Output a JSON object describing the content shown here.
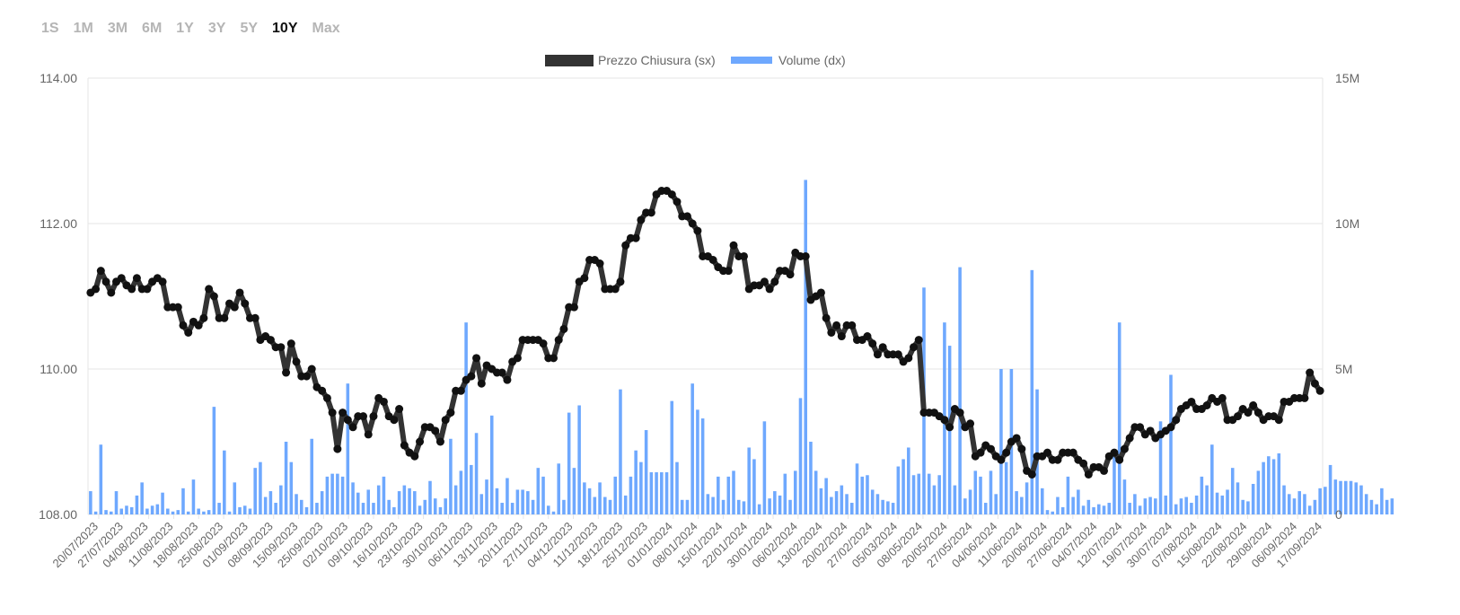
{
  "periods": [
    {
      "label": "1S",
      "active": false
    },
    {
      "label": "1M",
      "active": false
    },
    {
      "label": "3M",
      "active": false
    },
    {
      "label": "6M",
      "active": false
    },
    {
      "label": "1Y",
      "active": false
    },
    {
      "label": "3Y",
      "active": false
    },
    {
      "label": "5Y",
      "active": false
    },
    {
      "label": "10Y",
      "active": true
    },
    {
      "label": "Max",
      "active": false
    }
  ],
  "colors": {
    "price": "#333333",
    "volume": "#6ea8fe",
    "grid": "#e6e6e6",
    "tick_text": "#666666",
    "period_active": "#111111",
    "period_inactive": "#b5b5b5"
  },
  "chart_data": {
    "type": "line",
    "title": "",
    "legend": {
      "position": "top-center",
      "entries": [
        {
          "label": "Prezzo Chiusura (sx)",
          "color": "#333333"
        },
        {
          "label": "Volume (dx)",
          "color": "#6ea8fe"
        }
      ]
    },
    "x_tick_labels": [
      "20/07/2023",
      "27/07/2023",
      "04/08/2023",
      "11/08/2023",
      "18/08/2023",
      "25/08/2023",
      "01/09/2023",
      "08/09/2023",
      "15/09/2023",
      "25/09/2023",
      "02/10/2023",
      "09/10/2023",
      "16/10/2023",
      "23/10/2023",
      "30/10/2023",
      "06/11/2023",
      "13/11/2023",
      "20/11/2023",
      "27/11/2023",
      "04/12/2023",
      "11/12/2023",
      "18/12/2023",
      "25/12/2023",
      "01/01/2024",
      "08/01/2024",
      "15/01/2024",
      "22/01/2024",
      "30/01/2024",
      "06/02/2024",
      "13/02/2024",
      "20/02/2024",
      "27/02/2024",
      "05/03/2024",
      "08/05/2024",
      "20/05/2024",
      "27/05/2024",
      "04/06/2024",
      "11/06/2024",
      "20/06/2024",
      "27/06/2024",
      "04/07/2024",
      "12/07/2024",
      "19/07/2024",
      "30/07/2024",
      "07/08/2024",
      "15/08/2024",
      "22/08/2024",
      "29/08/2024",
      "06/09/2024",
      "17/09/2024"
    ],
    "y_left": {
      "label": "",
      "range": [
        108,
        114
      ],
      "ticks": [
        "108.00",
        "110.00",
        "112.00",
        "114.00"
      ]
    },
    "y_right": {
      "label": "",
      "range": [
        0,
        15000000
      ],
      "ticks": [
        "0",
        "5M",
        "10M",
        "15M"
      ]
    },
    "grid": true,
    "series": [
      {
        "name": "Prezzo Chiusura (sx)",
        "type": "line",
        "axis": "left",
        "values": [
          111.05,
          111.1,
          111.35,
          111.2,
          111.05,
          111.2,
          111.25,
          111.15,
          111.1,
          111.25,
          111.1,
          111.1,
          111.2,
          111.25,
          111.2,
          110.85,
          110.85,
          110.85,
          110.6,
          110.5,
          110.65,
          110.6,
          110.7,
          111.1,
          111.0,
          110.7,
          110.7,
          110.9,
          110.85,
          111.05,
          110.9,
          110.7,
          110.7,
          110.4,
          110.45,
          110.4,
          110.3,
          110.3,
          109.95,
          110.35,
          110.1,
          109.9,
          109.9,
          110.0,
          109.75,
          109.7,
          109.6,
          109.4,
          108.9,
          109.4,
          109.3,
          109.2,
          109.35,
          109.35,
          109.1,
          109.35,
          109.6,
          109.55,
          109.35,
          109.3,
          109.45,
          108.95,
          108.85,
          108.8,
          109.0,
          109.2,
          109.2,
          109.15,
          109.0,
          109.3,
          109.4,
          109.7,
          109.7,
          109.85,
          109.9,
          110.15,
          109.8,
          110.05,
          110.0,
          109.95,
          109.95,
          109.85,
          110.1,
          110.15,
          110.4,
          110.4,
          110.4,
          110.4,
          110.35,
          110.15,
          110.15,
          110.4,
          110.55,
          110.85,
          110.85,
          111.2,
          111.25,
          111.5,
          111.5,
          111.45,
          111.1,
          111.1,
          111.1,
          111.2,
          111.7,
          111.8,
          111.8,
          112.05,
          112.15,
          112.15,
          112.4,
          112.45,
          112.45,
          112.4,
          112.3,
          112.1,
          112.1,
          112.0,
          111.9,
          111.55,
          111.55,
          111.5,
          111.4,
          111.35,
          111.35,
          111.7,
          111.55,
          111.55,
          111.1,
          111.15,
          111.15,
          111.2,
          111.1,
          111.2,
          111.35,
          111.35,
          111.3,
          111.6,
          111.55,
          111.55,
          110.95,
          111.0,
          111.05,
          110.7,
          110.5,
          110.6,
          110.45,
          110.6,
          110.6,
          110.4,
          110.4,
          110.45,
          110.35,
          110.2,
          110.3,
          110.2,
          110.2,
          110.2,
          110.1,
          110.15,
          110.3,
          110.4,
          109.4,
          109.4,
          109.4,
          109.35,
          109.3,
          109.2,
          109.45,
          109.4,
          109.2,
          109.25,
          108.8,
          108.85,
          108.95,
          108.9,
          108.8,
          108.75,
          108.85,
          109.0,
          109.05,
          108.9,
          108.6,
          108.55,
          108.8,
          108.8,
          108.85,
          108.75,
          108.75,
          108.85,
          108.85,
          108.85,
          108.75,
          108.7,
          108.55,
          108.65,
          108.65,
          108.6,
          108.8,
          108.85,
          108.75,
          108.9,
          109.05,
          109.2,
          109.2,
          109.1,
          109.15,
          109.05,
          109.1,
          109.15,
          109.2,
          109.3,
          109.45,
          109.5,
          109.55,
          109.45,
          109.45,
          109.5,
          109.6,
          109.55,
          109.6,
          109.3,
          109.3,
          109.35,
          109.45,
          109.4,
          109.5,
          109.4,
          109.3,
          109.35,
          109.35,
          109.3,
          109.55,
          109.55,
          109.6,
          109.6,
          109.6,
          109.95,
          109.8,
          109.7
        ]
      },
      {
        "name": "Volume (dx)",
        "type": "bar",
        "axis": "right",
        "values": [
          800000,
          100000,
          2400000,
          150000,
          100000,
          800000,
          200000,
          300000,
          250000,
          650000,
          1100000,
          200000,
          300000,
          350000,
          750000,
          200000,
          100000,
          150000,
          900000,
          100000,
          1200000,
          200000,
          100000,
          150000,
          3700000,
          400000,
          2200000,
          100000,
          1100000,
          250000,
          300000,
          200000,
          1600000,
          1800000,
          600000,
          800000,
          400000,
          1000000,
          2500000,
          1800000,
          700000,
          500000,
          250000,
          2600000,
          400000,
          800000,
          1300000,
          1400000,
          1400000,
          1300000,
          4500000,
          1100000,
          750000,
          400000,
          850000,
          400000,
          1000000,
          1300000,
          500000,
          250000,
          800000,
          1000000,
          900000,
          800000,
          300000,
          500000,
          1150000,
          550000,
          250000,
          550000,
          2600000,
          1000000,
          1500000,
          6600000,
          1700000,
          2800000,
          700000,
          1200000,
          3400000,
          900000,
          400000,
          1250000,
          400000,
          850000,
          850000,
          800000,
          500000,
          1600000,
          1300000,
          300000,
          100000,
          1750000,
          500000,
          3500000,
          1600000,
          3750000,
          1100000,
          900000,
          600000,
          1100000,
          600000,
          500000,
          1300000,
          4300000,
          650000,
          1300000,
          2200000,
          1800000,
          2900000,
          1450000,
          1450000,
          1450000,
          1450000,
          3900000,
          1800000,
          500000,
          500000,
          4500000,
          3600000,
          3300000,
          700000,
          600000,
          1300000,
          500000,
          1300000,
          1500000,
          500000,
          450000,
          2300000,
          1900000,
          350000,
          3200000,
          550000,
          800000,
          650000,
          1400000,
          500000,
          1500000,
          4000000,
          11500000,
          2500000,
          1500000,
          900000,
          1250000,
          600000,
          800000,
          1000000,
          700000,
          400000,
          1750000,
          1300000,
          1350000,
          850000,
          700000,
          500000,
          450000,
          400000,
          1650000,
          1900000,
          2300000,
          1350000,
          1400000,
          7800000,
          1400000,
          1000000,
          1350000,
          6600000,
          5800000,
          1000000,
          8500000,
          550000,
          850000,
          1500000,
          1300000,
          400000,
          1500000,
          700000,
          5000000,
          1800000,
          5000000,
          800000,
          600000,
          1100000,
          8400000,
          4300000,
          900000,
          150000,
          100000,
          600000,
          250000,
          1300000,
          600000,
          850000,
          300000,
          500000,
          250000,
          350000,
          300000,
          400000,
          2200000,
          6600000,
          1200000,
          400000,
          700000,
          300000,
          550000,
          600000,
          550000,
          3200000,
          650000,
          4800000,
          350000,
          550000,
          600000,
          400000,
          650000,
          1300000,
          1000000,
          2400000,
          750000,
          650000,
          850000,
          1600000,
          1100000,
          500000,
          450000,
          1050000,
          1500000,
          1800000,
          2000000,
          1900000,
          2100000,
          1000000,
          700000,
          550000,
          800000,
          700000,
          300000,
          500000,
          900000,
          950000,
          1700000,
          1200000,
          1150000,
          1150000,
          1150000,
          1100000,
          1000000,
          700000,
          500000,
          350000,
          900000,
          500000,
          550000
        ]
      }
    ]
  }
}
